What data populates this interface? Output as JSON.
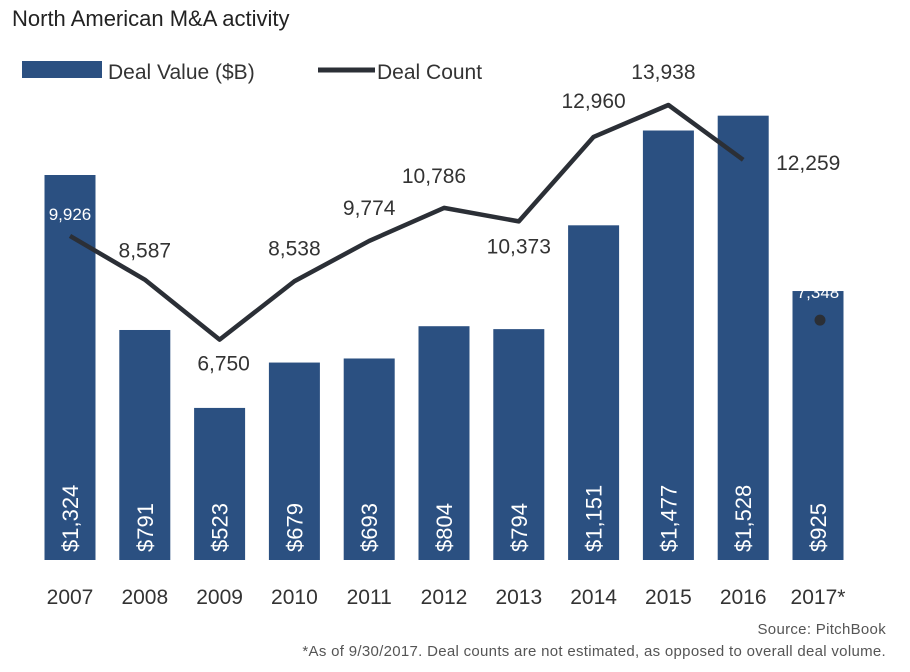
{
  "chart_data": {
    "type": "bar",
    "title": "North American M&A activity",
    "categories": [
      "2007",
      "2008",
      "2009",
      "2010",
      "2011",
      "2012",
      "2013",
      "2014",
      "2015",
      "2016",
      "2017*"
    ],
    "series": [
      {
        "name": "Deal Value ($B)",
        "type": "bar",
        "values": [
          1324,
          791,
          523,
          679,
          693,
          804,
          794,
          1151,
          1477,
          1528,
          925
        ],
        "labels": [
          "$1,324",
          "$791",
          "$523",
          "$679",
          "$693",
          "$804",
          "$794",
          "$1,151",
          "$1,477",
          "$1,528",
          "$925"
        ],
        "color": "#2b5081"
      },
      {
        "name": "Deal Count",
        "type": "line",
        "values": [
          9926,
          8587,
          6750,
          8538,
          9774,
          10786,
          10373,
          12960,
          13938,
          12259,
          7348
        ],
        "labels": [
          "9,926",
          "8,587",
          "6,750",
          "8,538",
          "9,774",
          "10,786",
          "10,373",
          "12,960",
          "13,938",
          "12,259",
          "7,348"
        ],
        "color": "#2b2f36"
      }
    ],
    "ylim_value": [
      0,
      1800
    ],
    "ylim_count": [
      0,
      15400
    ],
    "grid": false,
    "legend": "top-left"
  },
  "source": "Source: PitchBook",
  "footnote": "*As of 9/30/2017. Deal counts are not estimated, as opposed to overall deal volume."
}
